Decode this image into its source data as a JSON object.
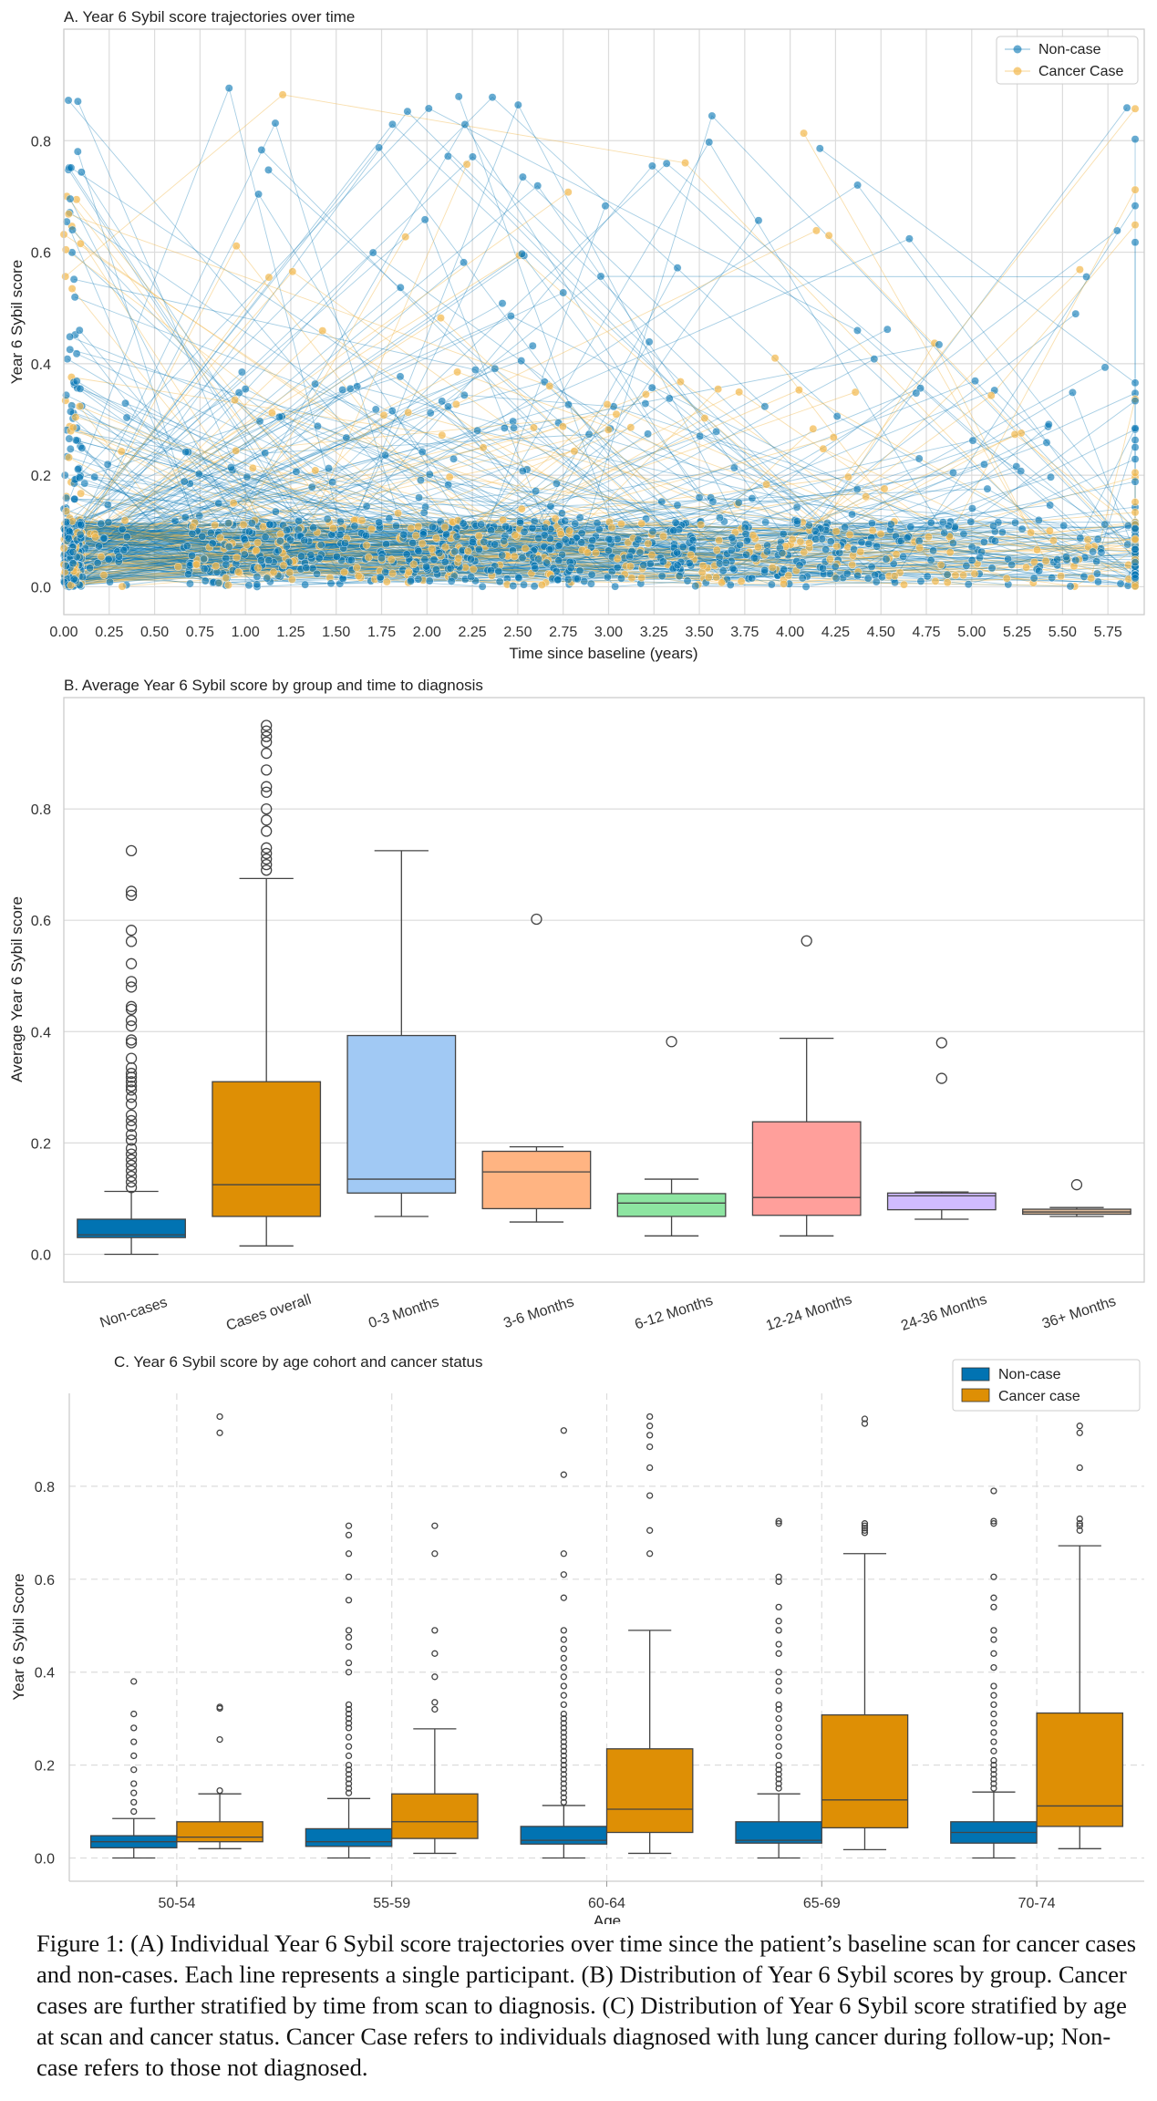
{
  "chart_data": [
    {
      "id": "A",
      "type": "line",
      "title": "A. Year 6 Sybil score trajectories over time",
      "xlabel": "Time since baseline (years)",
      "ylabel": "Year 6 Sybil score",
      "xlim": [
        0.0,
        5.95
      ],
      "ylim": [
        -0.05,
        1.0
      ],
      "x_ticks": [
        "0.00",
        "0.25",
        "0.50",
        "0.75",
        "1.00",
        "1.25",
        "1.50",
        "1.75",
        "2.00",
        "2.25",
        "2.50",
        "2.75",
        "3.00",
        "3.25",
        "3.50",
        "3.75",
        "4.00",
        "4.25",
        "4.50",
        "4.75",
        "5.00",
        "5.25",
        "5.50",
        "5.75"
      ],
      "y_ticks": [
        "0.0",
        "0.2",
        "0.4",
        "0.6",
        "0.8"
      ],
      "grid": true,
      "legend_position": "top-right",
      "series": [
        {
          "name": "Non-case",
          "color": "#0173b2"
        },
        {
          "name": "Cancer Case",
          "color": "#f2b84b"
        }
      ],
      "note": "Each line represents a single participant"
    },
    {
      "id": "B",
      "type": "box",
      "title": "B. Average Year 6 Sybil score by group and time to diagnosis",
      "xlabel": "",
      "ylabel": "Average Year 6 Sybil score",
      "ylim": [
        -0.05,
        1.0
      ],
      "y_ticks": [
        "0.0",
        "0.2",
        "0.4",
        "0.6",
        "0.8"
      ],
      "grid": true,
      "categories": [
        "Non-cases",
        "Cases overall",
        "0-3 Months",
        "3-6 Months",
        "6-12 Months",
        "12-24 Months",
        "24-36 Months",
        "36+ Months"
      ],
      "boxes": [
        {
          "category": "Non-cases",
          "color": "#0173b2",
          "min": 0.0,
          "q1": 0.03,
          "median": 0.035,
          "q3": 0.063,
          "max": 0.113,
          "outliers": [
            0.725,
            0.652,
            0.645,
            0.582,
            0.562,
            0.522,
            0.49,
            0.48,
            0.445,
            0.44,
            0.42,
            0.41,
            0.385,
            0.38,
            0.352,
            0.335,
            0.325,
            0.318,
            0.31,
            0.302,
            0.295,
            0.282,
            0.27,
            0.25,
            0.24,
            0.23,
            0.215,
            0.205,
            0.19,
            0.18,
            0.17,
            0.16,
            0.15,
            0.14,
            0.13,
            0.12
          ]
        },
        {
          "category": "Cases overall",
          "color": "#de8f05",
          "min": 0.015,
          "q1": 0.068,
          "median": 0.125,
          "q3": 0.31,
          "max": 0.675,
          "outliers": [
            0.95,
            0.94,
            0.93,
            0.92,
            0.9,
            0.87,
            0.84,
            0.83,
            0.8,
            0.78,
            0.76,
            0.73,
            0.72,
            0.71,
            0.7,
            0.69
          ]
        },
        {
          "category": "0-3 Months",
          "color": "#a1c9f4",
          "min": 0.068,
          "q1": 0.11,
          "median": 0.135,
          "q3": 0.393,
          "max": 0.725,
          "outliers": []
        },
        {
          "category": "3-6 Months",
          "color": "#ffb482",
          "min": 0.058,
          "q1": 0.082,
          "median": 0.148,
          "q3": 0.185,
          "max": 0.193,
          "outliers": [
            0.602
          ]
        },
        {
          "category": "6-12 Months",
          "color": "#8de5a1",
          "min": 0.033,
          "q1": 0.068,
          "median": 0.092,
          "q3": 0.109,
          "max": 0.135,
          "outliers": [
            0.382
          ]
        },
        {
          "category": "12-24 Months",
          "color": "#ff9f9b",
          "min": 0.033,
          "q1": 0.07,
          "median": 0.102,
          "q3": 0.238,
          "max": 0.388,
          "outliers": [
            0.563
          ]
        },
        {
          "category": "24-36 Months",
          "color": "#d0bbff",
          "min": 0.063,
          "q1": 0.08,
          "median": 0.105,
          "q3": 0.11,
          "max": 0.112,
          "outliers": [
            0.38,
            0.316
          ]
        },
        {
          "category": "36+ Months",
          "color": "#debb9b",
          "min": 0.068,
          "q1": 0.072,
          "median": 0.076,
          "q3": 0.081,
          "max": 0.084,
          "outliers": [
            0.125
          ]
        }
      ]
    },
    {
      "id": "C",
      "type": "box",
      "title": "C. Year 6 Sybil score by age cohort and cancer status",
      "xlabel": "Age",
      "ylabel": "Year 6 Sybil Score",
      "ylim": [
        -0.05,
        1.0
      ],
      "y_ticks": [
        "0.0",
        "0.2",
        "0.4",
        "0.6",
        "0.8"
      ],
      "grid": true,
      "legend_position": "top-right",
      "categories": [
        "50-54",
        "55-59",
        "60-64",
        "65-69",
        "70-74"
      ],
      "series": [
        {
          "name": "Non-case",
          "color": "#0173b2",
          "boxes": [
            {
              "min": 0.0,
              "q1": 0.022,
              "median": 0.035,
              "q3": 0.048,
              "max": 0.085,
              "outliers": [
                0.38,
                0.31,
                0.28,
                0.25,
                0.22,
                0.19,
                0.16,
                0.14,
                0.12,
                0.1
              ]
            },
            {
              "min": 0.0,
              "q1": 0.025,
              "median": 0.035,
              "q3": 0.063,
              "max": 0.128,
              "outliers": [
                0.715,
                0.695,
                0.655,
                0.605,
                0.555,
                0.49,
                0.475,
                0.455,
                0.42,
                0.4,
                0.33,
                0.32,
                0.31,
                0.3,
                0.29,
                0.28,
                0.26,
                0.24,
                0.22,
                0.2,
                0.19,
                0.18,
                0.17,
                0.16,
                0.15,
                0.14
              ]
            },
            {
              "min": 0.0,
              "q1": 0.03,
              "median": 0.038,
              "q3": 0.068,
              "max": 0.113,
              "outliers": [
                0.92,
                0.825,
                0.655,
                0.61,
                0.56,
                0.49,
                0.47,
                0.45,
                0.43,
                0.41,
                0.39,
                0.37,
                0.35,
                0.33,
                0.31,
                0.3,
                0.29,
                0.28,
                0.27,
                0.26,
                0.25,
                0.24,
                0.23,
                0.22,
                0.21,
                0.2,
                0.19,
                0.18,
                0.17,
                0.16,
                0.15,
                0.14,
                0.13,
                0.12
              ]
            },
            {
              "min": 0.0,
              "q1": 0.032,
              "median": 0.038,
              "q3": 0.078,
              "max": 0.138,
              "outliers": [
                0.725,
                0.72,
                0.605,
                0.595,
                0.54,
                0.51,
                0.49,
                0.46,
                0.44,
                0.4,
                0.38,
                0.36,
                0.33,
                0.32,
                0.3,
                0.28,
                0.26,
                0.24,
                0.22,
                0.2,
                0.19,
                0.18,
                0.17,
                0.16,
                0.15
              ]
            },
            {
              "min": 0.0,
              "q1": 0.032,
              "median": 0.055,
              "q3": 0.078,
              "max": 0.142,
              "outliers": [
                0.79,
                0.725,
                0.72,
                0.605,
                0.56,
                0.54,
                0.49,
                0.47,
                0.44,
                0.41,
                0.37,
                0.35,
                0.33,
                0.31,
                0.29,
                0.27,
                0.25,
                0.23,
                0.21,
                0.2,
                0.19,
                0.18,
                0.17,
                0.16,
                0.15
              ]
            }
          ]
        },
        {
          "name": "Cancer case",
          "color": "#de8f05",
          "boxes": [
            {
              "min": 0.02,
              "q1": 0.035,
              "median": 0.045,
              "q3": 0.078,
              "max": 0.138,
              "outliers": [
                0.95,
                0.915,
                0.325,
                0.322,
                0.255,
                0.145
              ]
            },
            {
              "min": 0.01,
              "q1": 0.042,
              "median": 0.078,
              "q3": 0.138,
              "max": 0.278,
              "outliers": [
                0.715,
                0.655,
                0.49,
                0.44,
                0.39,
                0.335,
                0.32
              ]
            },
            {
              "min": 0.01,
              "q1": 0.055,
              "median": 0.105,
              "q3": 0.235,
              "max": 0.49,
              "outliers": [
                0.95,
                0.93,
                0.91,
                0.885,
                0.84,
                0.78,
                0.705,
                0.655
              ]
            },
            {
              "min": 0.018,
              "q1": 0.065,
              "median": 0.125,
              "q3": 0.308,
              "max": 0.655,
              "outliers": [
                0.945,
                0.935,
                0.72,
                0.715,
                0.71,
                0.705,
                0.7
              ]
            },
            {
              "min": 0.02,
              "q1": 0.068,
              "median": 0.112,
              "q3": 0.312,
              "max": 0.672,
              "outliers": [
                0.93,
                0.915,
                0.84,
                0.73,
                0.72,
                0.715,
                0.705
              ]
            }
          ]
        }
      ]
    }
  ],
  "caption": "Figure 1: (A) Individual Year 6 Sybil score trajectories over time since the patient’s baseline scan for cancer cases and non-cases. Each line represents a single participant. (B) Distribution of Year 6 Sybil scores by group. Cancer cases are further stratified by time from scan to diagnosis. (C) Distribution of Year 6 Sybil score stratified by age at scan and cancer status. Cancer Case refers to individuals diagnosed with lung cancer during follow-up; Non-case refers to those not diagnosed."
}
